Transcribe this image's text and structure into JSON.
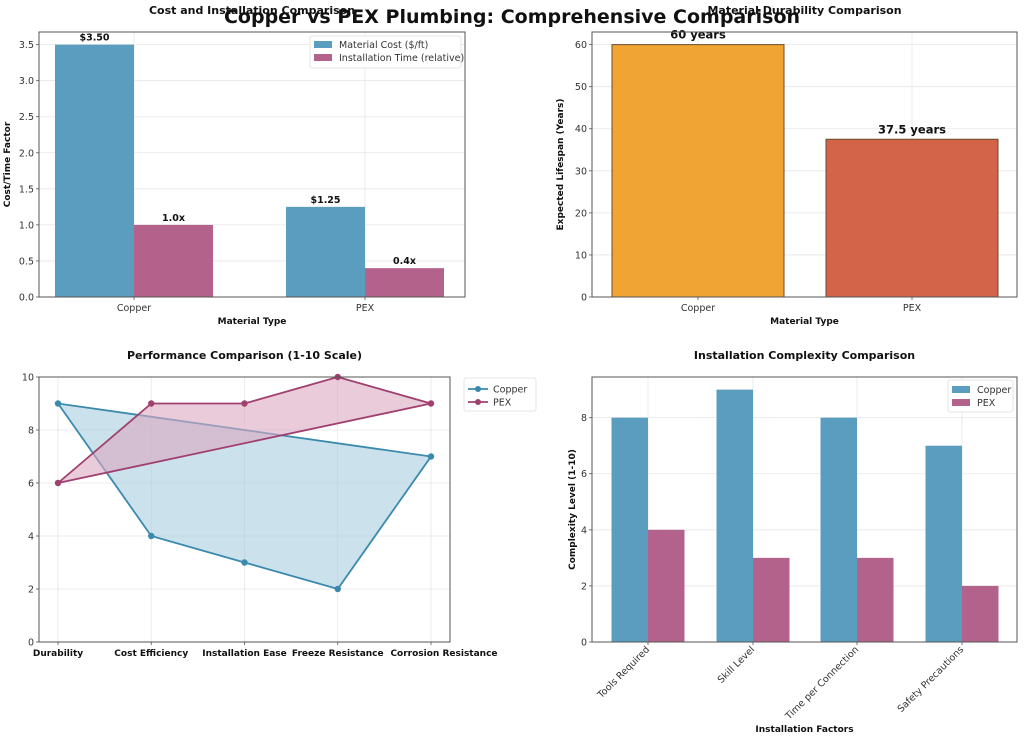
{
  "suptitle": "Copper vs PEX Plumbing: Comprehensive Comparison",
  "chart_data": [
    {
      "id": "cost",
      "type": "bar",
      "title": "Cost and Installation Comparison",
      "xlabel": "Material Type",
      "ylabel": "Cost/Time Factor",
      "categories": [
        "Copper",
        "PEX"
      ],
      "ylim": [
        0,
        3.675
      ],
      "yticks": [
        0.0,
        0.5,
        1.0,
        1.5,
        2.0,
        2.5,
        3.0,
        3.5
      ],
      "ytick_labels": [
        "0.0",
        "0.5",
        "1.0",
        "1.5",
        "2.0",
        "2.5",
        "3.0",
        "3.5"
      ],
      "grid": true,
      "legend": "top-right",
      "series": [
        {
          "name": "Material Cost ($/ft)",
          "color": "#5a9dbf",
          "values": [
            3.5,
            1.25
          ],
          "labels": [
            "$3.50",
            "$1.25"
          ]
        },
        {
          "name": "Installation Time (relative)",
          "color": "#b3628c",
          "values": [
            1.0,
            0.4
          ],
          "labels": [
            "1.0x",
            "0.4x"
          ]
        }
      ]
    },
    {
      "id": "durability",
      "type": "bar",
      "title": "Material Durability Comparison",
      "xlabel": "Material Type",
      "ylabel": "Expected Lifespan (Years)",
      "categories": [
        "Copper",
        "PEX"
      ],
      "ylim": [
        0,
        63
      ],
      "yticks": [
        0,
        10,
        20,
        30,
        40,
        50,
        60
      ],
      "ytick_labels": [
        "0",
        "10",
        "20",
        "30",
        "40",
        "50",
        "60"
      ],
      "grid": true,
      "values": [
        60,
        37.5
      ],
      "colors": [
        "#f0a434",
        "#d3644a"
      ],
      "labels": [
        "60 years",
        "37.5 years"
      ]
    },
    {
      "id": "performance",
      "type": "line",
      "title": "Performance Comparison (1-10 Scale)",
      "xlabel": "",
      "ylabel": "",
      "categories": [
        "Durability",
        "Cost Efficiency",
        "Installation Ease",
        "Freeze Resistance",
        "Corrosion Resistance"
      ],
      "ylim": [
        0,
        10
      ],
      "yticks": [
        0,
        2,
        4,
        6,
        8,
        10
      ],
      "ytick_labels": [
        "0",
        "2",
        "4",
        "6",
        "8",
        "10"
      ],
      "grid": true,
      "legend": "outside-right",
      "filled": true,
      "series": [
        {
          "name": "Copper",
          "color": "#3a8aae",
          "fill": "#a8cddd",
          "values": [
            9,
            4,
            3,
            2,
            7
          ]
        },
        {
          "name": "PEX",
          "color": "#a0406f",
          "fill": "#dba8c1",
          "values": [
            6,
            9,
            9,
            10,
            9
          ]
        }
      ]
    },
    {
      "id": "complexity",
      "type": "bar",
      "title": "Installation Complexity Comparison",
      "xlabel": "Installation Factors",
      "ylabel": "Complexity Level (1-10)",
      "categories": [
        "Tools Required",
        "Skill Level",
        "Time per Connection",
        "Safety Precautions"
      ],
      "ylim": [
        0,
        9.45
      ],
      "yticks": [
        0,
        2,
        4,
        6,
        8
      ],
      "ytick_labels": [
        "0",
        "2",
        "4",
        "6",
        "8"
      ],
      "grid": true,
      "legend": "top-right",
      "series": [
        {
          "name": "Copper",
          "color": "#5a9dbf",
          "values": [
            8,
            9,
            8,
            7
          ]
        },
        {
          "name": "PEX",
          "color": "#b3628c",
          "values": [
            4,
            3,
            3,
            2
          ]
        }
      ]
    }
  ]
}
